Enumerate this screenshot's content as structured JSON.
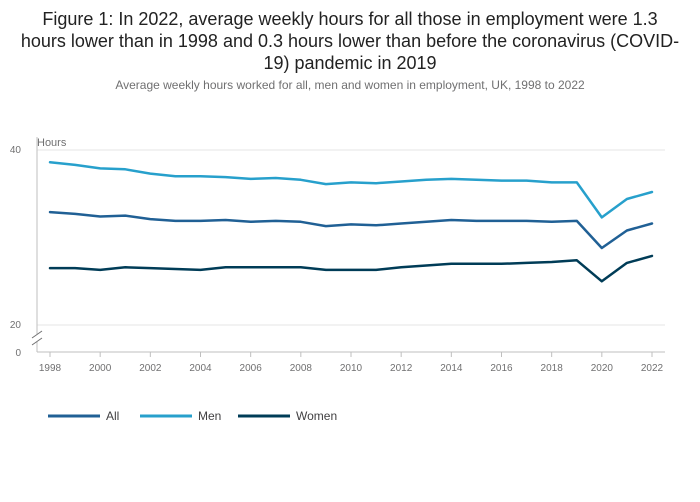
{
  "chart_data": {
    "type": "line",
    "title": "Figure 1: In 2022, average weekly hours for all those in employment were 1.3 hours lower than in 1998 and 0.3 hours lower than before the coronavirus (COVID-19) pandemic in 2019",
    "subtitle": "Average weekly hours worked for all, men and women in employment, UK, 1998 to 2022",
    "ylabel": "Hours",
    "xlabel": "",
    "ylim": [
      20,
      40
    ],
    "y_broken_axis_zero": "0",
    "yticks": [
      "40",
      "20"
    ],
    "xticks": [
      "1998",
      "2000",
      "2002",
      "2004",
      "2006",
      "2008",
      "2010",
      "2012",
      "2014",
      "2016",
      "2018",
      "2020",
      "2022"
    ],
    "x": [
      1998,
      1999,
      2000,
      2001,
      2002,
      2003,
      2004,
      2005,
      2006,
      2007,
      2008,
      2009,
      2010,
      2011,
      2012,
      2013,
      2014,
      2015,
      2016,
      2017,
      2018,
      2019,
      2020,
      2021,
      2022
    ],
    "series": [
      {
        "name": "All",
        "color": "#206095",
        "values": [
          32.9,
          32.7,
          32.4,
          32.5,
          32.1,
          31.9,
          31.9,
          32.0,
          31.8,
          31.9,
          31.8,
          31.3,
          31.5,
          31.4,
          31.6,
          31.8,
          32.0,
          31.9,
          31.9,
          31.9,
          31.8,
          31.9,
          28.8,
          30.8,
          31.6
        ]
      },
      {
        "name": "Men",
        "color": "#27a0cc",
        "values": [
          38.6,
          38.3,
          37.9,
          37.8,
          37.3,
          37.0,
          37.0,
          36.9,
          36.7,
          36.8,
          36.6,
          36.1,
          36.3,
          36.2,
          36.4,
          36.6,
          36.7,
          36.6,
          36.5,
          36.5,
          36.3,
          36.3,
          32.3,
          34.4,
          35.2
        ]
      },
      {
        "name": "Women",
        "color": "#003c57",
        "values": [
          26.5,
          26.5,
          26.3,
          26.6,
          26.5,
          26.4,
          26.3,
          26.6,
          26.6,
          26.6,
          26.6,
          26.3,
          26.3,
          26.3,
          26.6,
          26.8,
          27.0,
          27.0,
          27.0,
          27.1,
          27.2,
          27.4,
          25.0,
          27.1,
          27.9
        ]
      }
    ],
    "legend": [
      "All",
      "Men",
      "Women"
    ],
    "grid": true
  }
}
